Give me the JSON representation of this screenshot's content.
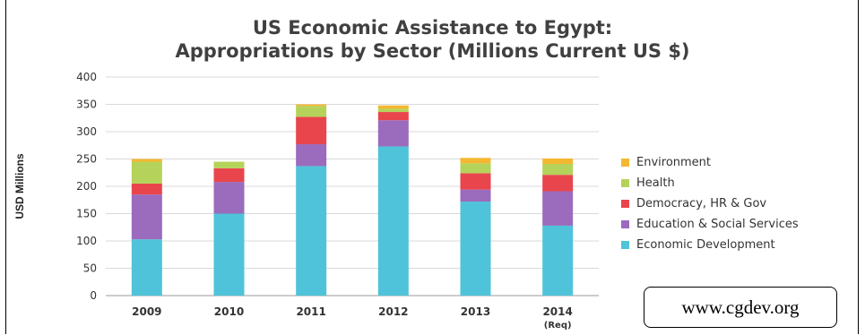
{
  "title_line1": "US Economic Assistance to Egypt:",
  "title_line2": "Appropriations by Sector (Millions Current US $)",
  "source_label": "www.cgdev.org",
  "chart_data": {
    "type": "bar",
    "stacked": true,
    "ylabel": "USD Millions",
    "ylim": [
      0,
      400
    ],
    "yticks": [
      0,
      50,
      100,
      150,
      200,
      250,
      300,
      350,
      400
    ],
    "grid": true,
    "legend_position": "right",
    "categories": [
      "2009",
      "2010",
      "2011",
      "2012",
      "2013",
      "2014"
    ],
    "category_sublabels": [
      "",
      "",
      "",
      "",
      "",
      "(Req)"
    ],
    "series": [
      {
        "name": "Economic Development",
        "color": "#4fc3d9",
        "values": [
          103,
          150,
          237,
          273,
          172,
          128
        ]
      },
      {
        "name": "Education & Social Services",
        "color": "#9b6bbd",
        "values": [
          82,
          58,
          40,
          48,
          22,
          63
        ]
      },
      {
        "name": "Democracy, HR & Gov",
        "color": "#e8464c",
        "values": [
          20,
          25,
          50,
          15,
          30,
          30
        ]
      },
      {
        "name": "Health",
        "color": "#b5d35a",
        "values": [
          40,
          12,
          20,
          6,
          18,
          20
        ]
      },
      {
        "name": "Environment",
        "color": "#f4b731",
        "values": [
          5,
          0,
          3,
          6,
          10,
          10
        ]
      }
    ]
  }
}
